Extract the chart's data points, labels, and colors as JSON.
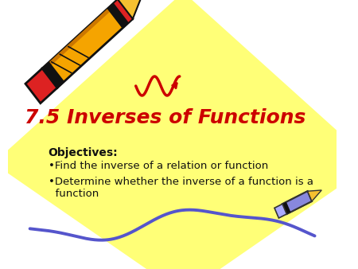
{
  "bg_color": "#ffffff",
  "diamond_color": "#ffff77",
  "title": "7.5 Inverses of Functions",
  "title_color": "#cc0000",
  "title_fontsize": 18,
  "objectives_label": "Objectives:",
  "objectives_fontsize": 10,
  "bullet1": "•Find the inverse of a relation or function",
  "bullet2": "•Determine whether the inverse of a function is a\n  function",
  "bullet_fontsize": 9.5,
  "text_color": "#111111",
  "squiggle1_color": "#cc0000",
  "squiggle2_color": "#5555cc"
}
